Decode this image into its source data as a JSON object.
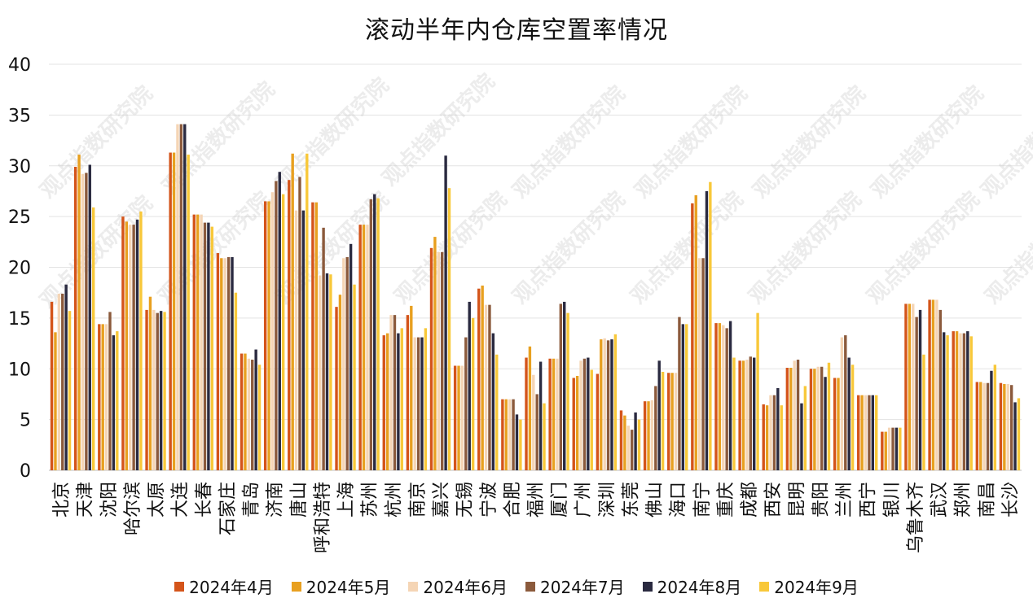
{
  "chart_data": {
    "type": "bar",
    "title": "滚动半年内仓库空置率情况",
    "xlabel": "",
    "ylabel": "",
    "ylim": [
      0,
      40
    ],
    "yticks": [
      0,
      5,
      10,
      15,
      20,
      25,
      30,
      35,
      40
    ],
    "grid": true,
    "legend_position": "bottom",
    "watermark_text": "观点指数研究院",
    "categories": [
      "北京",
      "天津",
      "沈阳",
      "哈尔滨",
      "太原",
      "大连",
      "长春",
      "石家庄",
      "青岛",
      "济南",
      "唐山",
      "呼和浩特",
      "上海",
      "苏州",
      "杭州",
      "南京",
      "嘉兴",
      "无锡",
      "宁波",
      "合肥",
      "福州",
      "厦门",
      "广州",
      "深圳",
      "东莞",
      "佛山",
      "海口",
      "南宁",
      "重庆",
      "成都",
      "西安",
      "昆明",
      "贵阳",
      "兰州",
      "西宁",
      "银川",
      "乌鲁木齐",
      "武汉",
      "郑州",
      "南昌",
      "长沙"
    ],
    "series": [
      {
        "name": "2024年4月",
        "color": "#D4541A",
        "values": [
          16.6,
          29.9,
          14.4,
          25.0,
          15.8,
          31.3,
          25.2,
          21.4,
          11.5,
          26.5,
          28.6,
          26.4,
          16.1,
          24.2,
          13.3,
          15.3,
          21.9,
          10.3,
          17.9,
          7.0,
          11.1,
          11.0,
          9.1,
          9.5,
          5.9,
          6.8,
          9.6,
          26.3,
          14.5,
          10.8,
          6.5,
          10.1,
          10.0,
          9.1,
          7.4,
          3.8,
          16.4,
          16.8,
          13.7,
          8.7,
          8.6
        ]
      },
      {
        "name": "2024年5月",
        "color": "#E8A020",
        "values": [
          13.6,
          31.1,
          14.4,
          24.5,
          17.1,
          31.3,
          25.2,
          20.9,
          11.5,
          26.5,
          31.2,
          26.4,
          17.3,
          24.2,
          13.5,
          16.2,
          23.0,
          10.3,
          18.2,
          7.0,
          12.2,
          11.0,
          9.3,
          12.9,
          5.4,
          6.8,
          9.6,
          27.1,
          14.5,
          10.8,
          6.4,
          10.1,
          10.0,
          9.1,
          7.4,
          3.8,
          16.4,
          16.8,
          13.7,
          8.7,
          8.5
        ]
      },
      {
        "name": "2024年6月",
        "color": "#F5D5B5",
        "values": [
          17.4,
          29.2,
          14.4,
          24.2,
          15.8,
          34.1,
          25.2,
          20.9,
          11.0,
          27.4,
          25.6,
          19.2,
          20.9,
          24.2,
          15.3,
          13.1,
          21.5,
          10.3,
          16.3,
          7.0,
          9.4,
          11.0,
          10.8,
          13.0,
          4.4,
          6.9,
          9.6,
          20.9,
          14.3,
          10.9,
          7.4,
          10.8,
          10.2,
          13.1,
          7.4,
          4.2,
          16.4,
          16.8,
          13.5,
          8.6,
          8.5
        ]
      },
      {
        "name": "2024年7月",
        "color": "#8B5A3C",
        "values": [
          17.4,
          29.3,
          15.6,
          24.2,
          15.5,
          34.1,
          24.4,
          21.0,
          10.9,
          28.5,
          28.9,
          23.9,
          21.0,
          26.7,
          15.3,
          13.1,
          21.5,
          13.1,
          16.3,
          7.0,
          7.5,
          16.4,
          11.0,
          12.8,
          4.0,
          8.3,
          15.1,
          20.9,
          14.0,
          11.2,
          7.4,
          10.9,
          10.2,
          13.3,
          7.4,
          4.2,
          15.1,
          15.8,
          13.5,
          8.6,
          8.4
        ]
      },
      {
        "name": "2024年8月",
        "color": "#2A2A40",
        "values": [
          18.3,
          30.1,
          13.3,
          24.7,
          15.7,
          34.1,
          24.4,
          21.0,
          11.9,
          29.4,
          25.6,
          19.4,
          22.3,
          27.2,
          13.5,
          13.1,
          31.0,
          16.6,
          13.5,
          5.5,
          10.7,
          16.6,
          11.1,
          12.9,
          5.7,
          10.8,
          14.4,
          27.5,
          14.7,
          11.1,
          8.1,
          6.6,
          9.2,
          11.1,
          7.4,
          4.2,
          15.8,
          13.6,
          13.7,
          9.8,
          6.7
        ]
      },
      {
        "name": "2024年9月",
        "color": "#F8C83A",
        "values": [
          15.7,
          25.9,
          13.7,
          25.5,
          15.6,
          31.1,
          24.0,
          17.5,
          10.4,
          27.2,
          31.2,
          19.3,
          18.3,
          26.8,
          14.0,
          14.0,
          27.8,
          15.0,
          11.4,
          5.0,
          6.6,
          15.5,
          9.9,
          13.4,
          5.0,
          9.7,
          14.4,
          28.4,
          11.1,
          15.5,
          6.4,
          8.3,
          10.6,
          10.4,
          7.4,
          4.2,
          11.4,
          13.3,
          13.2,
          10.4,
          7.1
        ]
      }
    ]
  }
}
